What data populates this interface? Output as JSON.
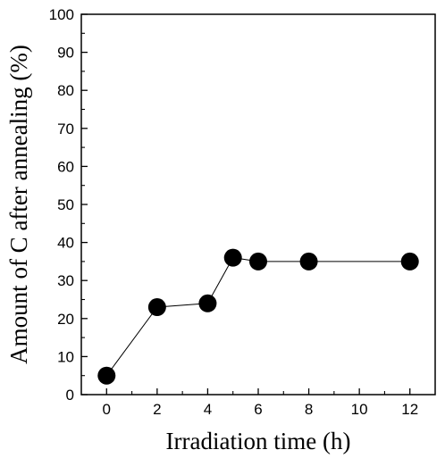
{
  "chart_data": {
    "type": "scatter",
    "title": "",
    "xlabel": "Irradiation time (h)",
    "ylabel": "Amount of C after annealing (%)",
    "xlim": [
      -1,
      13
    ],
    "ylim": [
      0,
      100
    ],
    "x_ticks": [
      0,
      2,
      4,
      6,
      8,
      10,
      12
    ],
    "y_ticks": [
      0,
      10,
      20,
      30,
      40,
      50,
      60,
      70,
      80,
      90,
      100
    ],
    "x_tick_labels": [
      "0",
      "2",
      "4",
      "6",
      "8",
      "10",
      "12"
    ],
    "y_tick_labels": [
      "0",
      "10",
      "20",
      "30",
      "40",
      "50",
      "60",
      "70",
      "80",
      "90",
      "100"
    ],
    "grid": false,
    "legend": "none",
    "connect_points": true,
    "marker_color": "#000000",
    "line_color": "#000000",
    "series": [
      {
        "x": [
          0,
          2,
          4,
          5,
          6,
          8,
          12
        ],
        "y": [
          5,
          23,
          24,
          36,
          35,
          35,
          35
        ]
      }
    ]
  }
}
